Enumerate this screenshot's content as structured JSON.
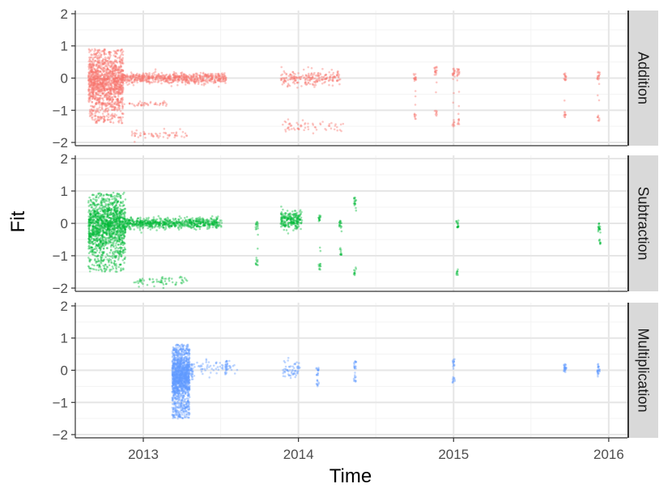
{
  "chart_data": {
    "type": "scatter",
    "xlabel": "Time",
    "ylabel": "Fit",
    "x_ticks": [
      "2013",
      "2014",
      "2015",
      "2016"
    ],
    "x_range": [
      "2012-07-25",
      "2016-02-14"
    ],
    "y_ticks": [
      2,
      1,
      0,
      -1,
      -2
    ],
    "ylim": [
      -2.1,
      2.1
    ],
    "grid": true,
    "panels": [
      {
        "name": "Addition",
        "color": "#F8766D",
        "clusters": [
          {
            "x0": "2012-08-25",
            "x1": "2012-11-15",
            "y_range": [
              -1.4,
              0.9
            ],
            "density": "very high"
          },
          {
            "x0": "2012-11-15",
            "x1": "2013-07-15",
            "y_center": 0.0,
            "y_spread": 0.08,
            "density": "high"
          },
          {
            "x0": "2012-12-01",
            "x1": "2013-04-15",
            "y_center": -1.75,
            "y_spread": 0.08,
            "density": "low"
          },
          {
            "x0": "2012-09-15",
            "x1": "2013-03-01",
            "y_center": -0.8,
            "y_spread": 0.04,
            "density": "low"
          },
          {
            "x0": "2013-11-20",
            "x1": "2014-04-10",
            "y_center": 0.0,
            "y_spread": 0.12,
            "density": "medium"
          },
          {
            "x0": "2013-11-25",
            "x1": "2014-04-20",
            "y_center": -1.5,
            "y_spread": 0.1,
            "density": "low"
          }
        ],
        "columns": [
          {
            "x": "2014-10-02",
            "y": [
              -1.3,
              0.15
            ]
          },
          {
            "x": "2014-11-20",
            "y": [
              -1.2,
              0.35
            ]
          },
          {
            "x": "2015-01-01",
            "y": [
              -1.5,
              0.3
            ]
          },
          {
            "x": "2015-01-12",
            "y": [
              -1.45,
              0.3
            ]
          },
          {
            "x": "2015-09-20",
            "y": [
              -1.25,
              0.15
            ]
          },
          {
            "x": "2015-12-08",
            "y": [
              -1.35,
              0.2
            ]
          }
        ]
      },
      {
        "name": "Subtraction",
        "color": "#00BA38",
        "clusters": [
          {
            "x0": "2012-08-25",
            "x1": "2012-11-20",
            "y_range": [
              -1.5,
              0.95
            ],
            "density": "very high"
          },
          {
            "x0": "2012-11-20",
            "x1": "2013-07-05",
            "y_center": 0.0,
            "y_spread": 0.08,
            "density": "high"
          },
          {
            "x0": "2012-12-10",
            "x1": "2013-04-15",
            "y_center": -1.8,
            "y_spread": 0.08,
            "density": "low"
          },
          {
            "x0": "2013-11-20",
            "x1": "2014-01-10",
            "y_center": 0.1,
            "y_spread": 0.15,
            "density": "medium"
          }
        ],
        "columns": [
          {
            "x": "2013-09-25",
            "y": [
              -1.3,
              0.05
            ]
          },
          {
            "x": "2014-02-20",
            "y": [
              -1.45,
              0.25
            ]
          },
          {
            "x": "2014-04-10",
            "y": [
              -1.0,
              0.1
            ]
          },
          {
            "x": "2014-05-14",
            "y": [
              -1.6,
              0.8
            ]
          },
          {
            "x": "2015-01-10",
            "y": [
              -1.6,
              0.1
            ]
          },
          {
            "x": "2015-12-10",
            "y": [
              -0.65,
              0.0
            ]
          }
        ]
      },
      {
        "name": "Multiplication",
        "color": "#619CFF",
        "clusters": [
          {
            "x0": "2013-03-10",
            "x1": "2013-04-20",
            "y_range": [
              -1.5,
              0.8
            ],
            "density": "very high"
          },
          {
            "x0": "2013-04-20",
            "x1": "2013-08-10",
            "y_center": 0.05,
            "y_spread": 0.12,
            "density": "low"
          },
          {
            "x0": "2013-11-25",
            "x1": "2014-01-05",
            "y_center": 0.0,
            "y_spread": 0.15,
            "density": "low"
          }
        ],
        "columns": [
          {
            "x": "2013-04-25",
            "y": [
              -0.3,
              0.2
            ]
          },
          {
            "x": "2013-07-15",
            "y": [
              -0.15,
              0.3
            ]
          },
          {
            "x": "2014-02-15",
            "y": [
              -0.5,
              0.1
            ]
          },
          {
            "x": "2014-05-14",
            "y": [
              -0.4,
              0.3
            ]
          },
          {
            "x": "2015-01-01",
            "y": [
              -0.4,
              0.35
            ]
          },
          {
            "x": "2015-09-20",
            "y": [
              -0.1,
              0.2
            ]
          },
          {
            "x": "2015-12-08",
            "y": [
              -0.2,
              0.2
            ]
          }
        ]
      }
    ]
  },
  "colors": {
    "panel_bg": "#ffffff",
    "grid_major": "#e6e6e6",
    "grid_minor": "#f3f3f3",
    "strip_bg": "#d9d9d9",
    "strip_border": "#333333"
  }
}
